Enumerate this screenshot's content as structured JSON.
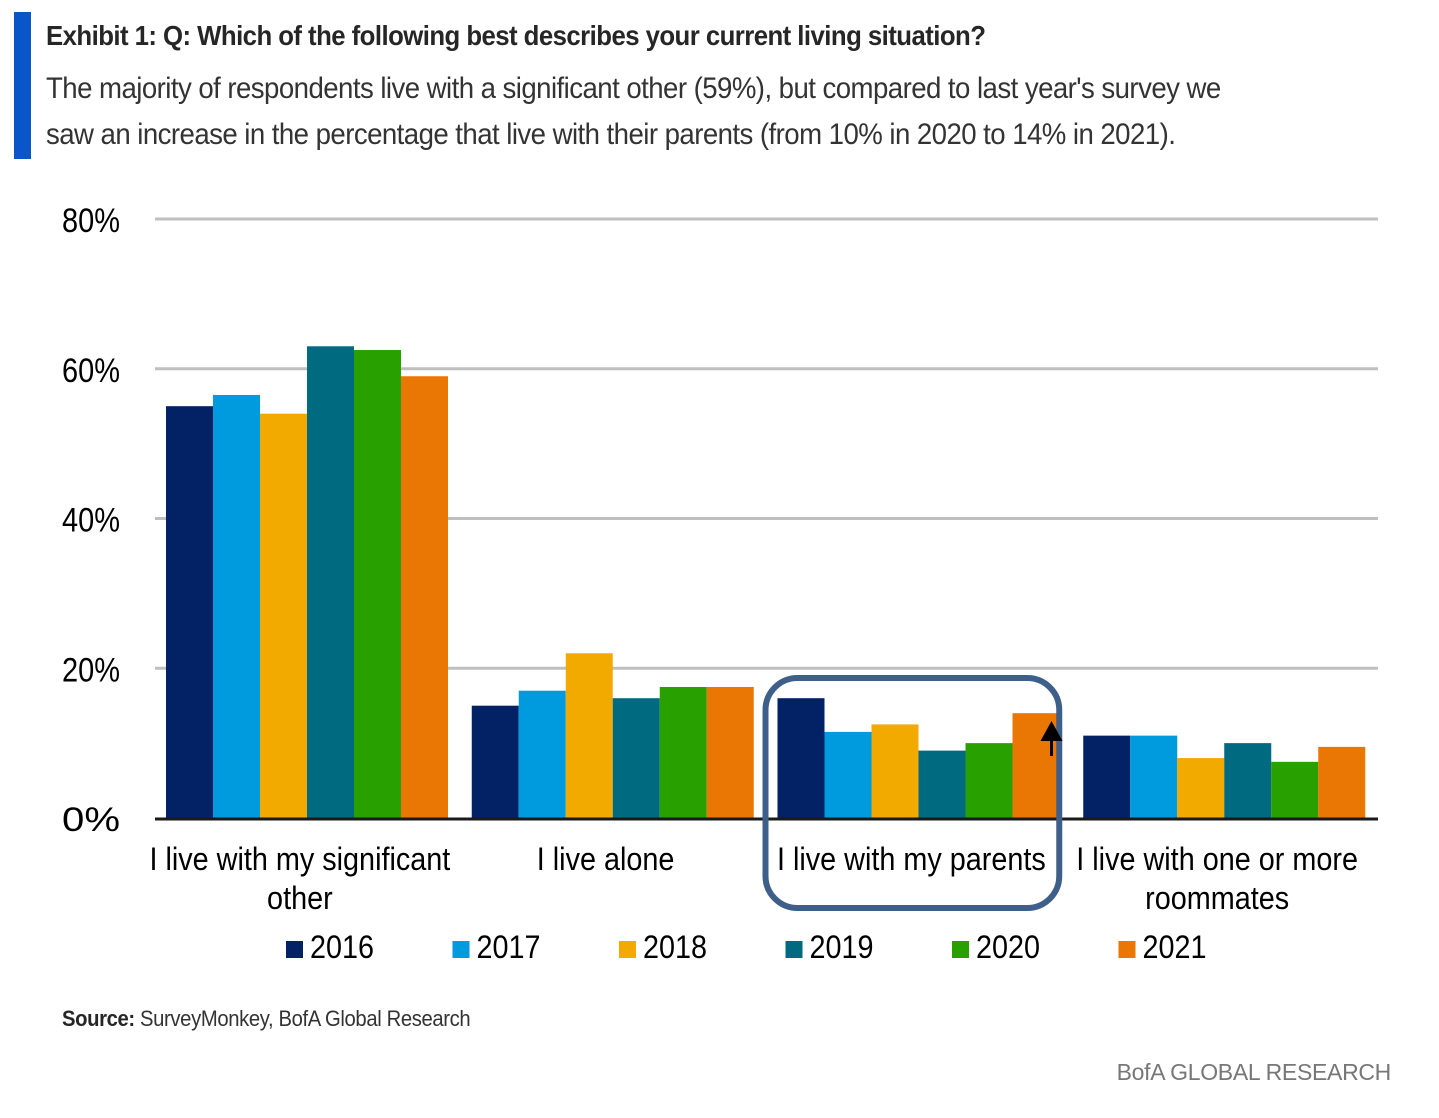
{
  "header": {
    "accent_color": "#0a55c8",
    "title": "Exhibit 1: Q: Which of the following best describes your current living situation?",
    "subtitle_lines": [
      "The majority of respondents live with a significant other (59%), but compared to last year's survey we",
      "saw an increase in the percentage that live with their parents (from 10% in 2020 to 14% in 2021)."
    ]
  },
  "chart_data": {
    "type": "bar",
    "title": "Exhibit 1: Q: Which of the following best describes your current living situation?",
    "xlabel": "",
    "ylabel": "",
    "ylim": [
      0,
      80
    ],
    "yticks": [
      0,
      20,
      40,
      60,
      80
    ],
    "ytick_labels": [
      "0%",
      "20%",
      "40%",
      "60%",
      "80%"
    ],
    "grid": true,
    "legend_position": "bottom",
    "categories": [
      [
        "I live with  my significant",
        "other"
      ],
      [
        "I live alone"
      ],
      [
        "I live with  my parents"
      ],
      [
        "I live with  one or more",
        "roommates"
      ]
    ],
    "series": [
      {
        "name": "2016",
        "color": "#022265",
        "values": [
          55,
          15,
          16,
          11
        ]
      },
      {
        "name": "2017",
        "color": "#009ade",
        "values": [
          56.5,
          17,
          11.5,
          11
        ]
      },
      {
        "name": "2018",
        "color": "#f2a900",
        "values": [
          54,
          22,
          12.5,
          8
        ]
      },
      {
        "name": "2019",
        "color": "#006a80",
        "values": [
          63,
          16,
          9,
          10
        ]
      },
      {
        "name": "2020",
        "color": "#28a000",
        "values": [
          62.5,
          17.5,
          10,
          7.5
        ]
      },
      {
        "name": "2021",
        "color": "#ea7603",
        "values": [
          59,
          17.5,
          14,
          9.5
        ]
      }
    ],
    "annotations": [
      {
        "type": "highlight-box",
        "category": "I live with  my parents",
        "color": "#3e5f8a"
      },
      {
        "type": "up-arrow",
        "category": "I live with  my parents",
        "series": "2021",
        "color": "#000000"
      }
    ]
  },
  "footer": {
    "source_label": "Source:",
    "source_text": " SurveyMonkey, BofA Global Research",
    "brand": "BofA GLOBAL RESEARCH"
  }
}
